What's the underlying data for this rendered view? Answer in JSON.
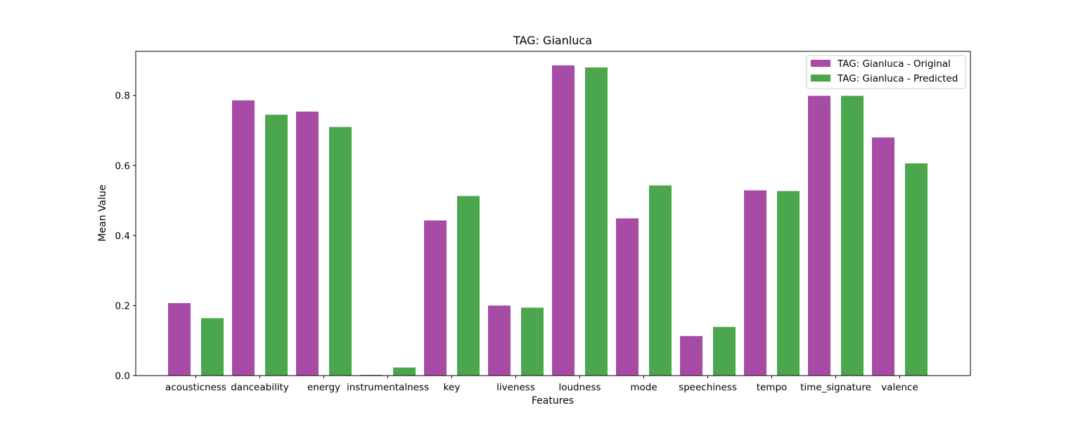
{
  "chart_data": {
    "type": "bar",
    "title": "TAG: Gianluca",
    "xlabel": "Features",
    "ylabel": "Mean Value",
    "categories": [
      "acousticness",
      "danceability",
      "energy",
      "instrumentalness",
      "key",
      "liveness",
      "loudness",
      "mode",
      "speechiness",
      "tempo",
      "time_signature",
      "valence"
    ],
    "series": [
      {
        "name": "TAG: Gianluca - Original",
        "color": "#a64ca6",
        "values": [
          0.207,
          0.786,
          0.754,
          0.002,
          0.443,
          0.2,
          0.886,
          0.449,
          0.113,
          0.529,
          0.799,
          0.68
        ]
      },
      {
        "name": "TAG: Gianluca - Predicted",
        "color": "#4ca64c",
        "values": [
          0.164,
          0.745,
          0.71,
          0.023,
          0.513,
          0.194,
          0.88,
          0.543,
          0.139,
          0.527,
          0.799,
          0.606
        ]
      }
    ],
    "ylim": [
      0,
      0.926
    ],
    "yticks": [
      "0.0",
      "0.2",
      "0.4",
      "0.6",
      "0.8"
    ],
    "legend": "top-right",
    "grid": false
  }
}
